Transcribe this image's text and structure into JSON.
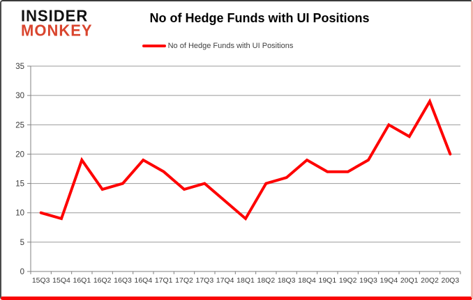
{
  "header": {
    "logo_line1": "INSIDER",
    "logo_line2": "MONKEY",
    "title": "No of Hedge Funds with UI Positions"
  },
  "legend": {
    "label": "No of Hedge Funds with UI Positions"
  },
  "colors": {
    "line": "#fe0000",
    "logo_accent": "#d9452e",
    "grid": "#999999",
    "axis": "#808080",
    "label_text": "#3a3a3a",
    "title_text": "#000000"
  },
  "chart_data": {
    "type": "line",
    "title": "No of Hedge Funds with UI Positions",
    "series_name": "No of Hedge Funds with UI Positions",
    "categories": [
      "15Q3",
      "15Q4",
      "16Q1",
      "16Q2",
      "16Q3",
      "16Q4",
      "17Q1",
      "17Q2",
      "17Q3",
      "17Q4",
      "18Q1",
      "18Q2",
      "18Q3",
      "18Q4",
      "19Q1",
      "19Q2",
      "19Q3",
      "19Q4",
      "20Q1",
      "20Q2",
      "20Q3"
    ],
    "values": [
      10,
      9,
      19,
      14,
      15,
      19,
      17,
      14,
      15,
      12,
      9,
      15,
      16,
      19,
      17,
      17,
      19,
      25,
      23,
      29,
      20
    ],
    "ylim": [
      0,
      35
    ],
    "yticks": [
      0,
      5,
      10,
      15,
      20,
      25,
      30,
      35
    ],
    "grid": "horizontal",
    "legend_position": "top",
    "line_width": 4
  }
}
